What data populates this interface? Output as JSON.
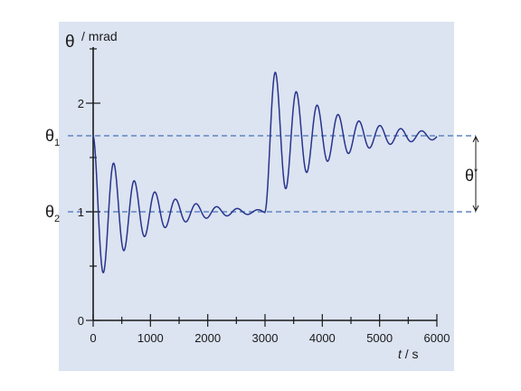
{
  "chart_data": {
    "type": "line",
    "title": "",
    "xlabel_italic": "t",
    "xlabel_unit": " / s",
    "ylabel_symbol": "θ",
    "ylabel_unit": "/ mrad",
    "xlim": [
      0,
      6000
    ],
    "ylim": [
      0,
      2.5
    ],
    "x_ticks": [
      0,
      1000,
      2000,
      3000,
      4000,
      5000,
      6000
    ],
    "y_ticks": [
      0,
      1,
      2
    ],
    "grid": false,
    "background_color": "#dce3f1",
    "line_color": "#27348b",
    "reference_line_color": "#5f86c2",
    "reference_lines": [
      {
        "label_base": "θ",
        "label_sub": "1",
        "y": 1.7
      },
      {
        "label_base": "θ",
        "label_sub": "2",
        "y": 1.0
      }
    ],
    "difference_label_base": "θ",
    "difference_label_sup": "*",
    "series": [
      {
        "description_points": [
          {
            "t": 0,
            "theta": 1.7
          },
          {
            "t": 120,
            "theta": 0.4
          },
          {
            "t": 290,
            "theta": 1.5
          },
          {
            "t": 2900,
            "theta": 1.0
          },
          {
            "t": 3030,
            "theta": 2.3
          },
          {
            "t": 6000,
            "theta": 1.7
          }
        ],
        "phase1": {
          "t_start": 0,
          "t_end": 3000,
          "start": 1.7,
          "equilibrium": 1.0,
          "period": 360,
          "decay_time": 800
        },
        "phase2": {
          "t_start": 3000,
          "t_end": 6000,
          "start": 1.0,
          "equilibrium": 1.7,
          "period": 365,
          "decay_time": 1000
        }
      }
    ]
  }
}
